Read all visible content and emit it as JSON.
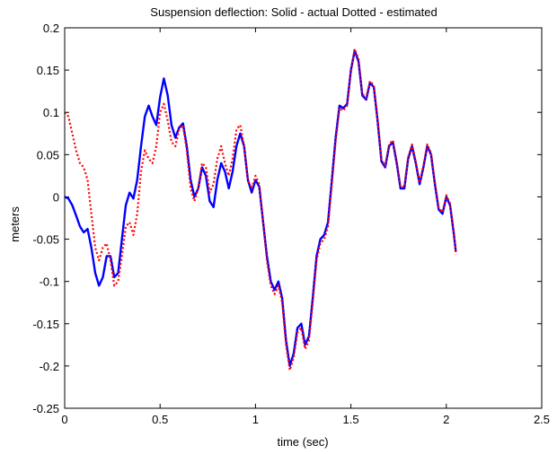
{
  "chart_data": {
    "type": "line",
    "title": "Suspension deflection: Solid - actual  Dotted - estimated",
    "xlabel": "time (sec)",
    "ylabel": "meters",
    "xlim": [
      0,
      2.5
    ],
    "ylim": [
      -0.25,
      0.2
    ],
    "xticks": [
      0,
      0.5,
      1,
      1.5,
      2,
      2.5
    ],
    "xtick_labels": [
      "0",
      "0.5",
      "1",
      "1.5",
      "2",
      "2.5"
    ],
    "yticks": [
      0.2,
      0.15,
      0.1,
      0.05,
      0,
      -0.05,
      -0.1,
      -0.15,
      -0.2,
      -0.25
    ],
    "ytick_labels": [
      "0.2",
      "0.15",
      "0.1",
      "0.05",
      "0",
      "-0.05",
      "-0.1",
      "-0.15",
      "-0.2",
      "-0.25"
    ],
    "grid": false,
    "series": [
      {
        "style": "solid",
        "color": "#0000ff",
        "points": [
          [
            0.0,
            0.0
          ],
          [
            0.02,
            -0.002
          ],
          [
            0.04,
            -0.01
          ],
          [
            0.06,
            -0.022
          ],
          [
            0.08,
            -0.035
          ],
          [
            0.1,
            -0.042
          ],
          [
            0.12,
            -0.038
          ],
          [
            0.14,
            -0.06
          ],
          [
            0.16,
            -0.09
          ],
          [
            0.18,
            -0.105
          ],
          [
            0.2,
            -0.095
          ],
          [
            0.22,
            -0.07
          ],
          [
            0.24,
            -0.07
          ],
          [
            0.26,
            -0.095
          ],
          [
            0.28,
            -0.09
          ],
          [
            0.3,
            -0.05
          ],
          [
            0.32,
            -0.01
          ],
          [
            0.34,
            0.005
          ],
          [
            0.36,
            -0.002
          ],
          [
            0.38,
            0.02
          ],
          [
            0.4,
            0.06
          ],
          [
            0.42,
            0.095
          ],
          [
            0.44,
            0.108
          ],
          [
            0.46,
            0.095
          ],
          [
            0.48,
            0.085
          ],
          [
            0.5,
            0.118
          ],
          [
            0.52,
            0.14
          ],
          [
            0.54,
            0.12
          ],
          [
            0.56,
            0.085
          ],
          [
            0.58,
            0.07
          ],
          [
            0.6,
            0.082
          ],
          [
            0.62,
            0.087
          ],
          [
            0.64,
            0.06
          ],
          [
            0.66,
            0.02
          ],
          [
            0.68,
            0.0
          ],
          [
            0.7,
            0.01
          ],
          [
            0.72,
            0.035
          ],
          [
            0.74,
            0.025
          ],
          [
            0.76,
            -0.005
          ],
          [
            0.78,
            -0.012
          ],
          [
            0.8,
            0.02
          ],
          [
            0.82,
            0.04
          ],
          [
            0.84,
            0.03
          ],
          [
            0.86,
            0.01
          ],
          [
            0.88,
            0.03
          ],
          [
            0.9,
            0.06
          ],
          [
            0.92,
            0.075
          ],
          [
            0.94,
            0.06
          ],
          [
            0.96,
            0.02
          ],
          [
            0.98,
            0.005
          ],
          [
            1.0,
            0.02
          ],
          [
            1.02,
            0.012
          ],
          [
            1.04,
            -0.03
          ],
          [
            1.06,
            -0.07
          ],
          [
            1.08,
            -0.1
          ],
          [
            1.1,
            -0.11
          ],
          [
            1.12,
            -0.1
          ],
          [
            1.14,
            -0.12
          ],
          [
            1.16,
            -0.17
          ],
          [
            1.18,
            -0.2
          ],
          [
            1.2,
            -0.185
          ],
          [
            1.22,
            -0.155
          ],
          [
            1.24,
            -0.15
          ],
          [
            1.26,
            -0.175
          ],
          [
            1.28,
            -0.165
          ],
          [
            1.3,
            -0.12
          ],
          [
            1.32,
            -0.07
          ],
          [
            1.34,
            -0.05
          ],
          [
            1.36,
            -0.045
          ],
          [
            1.38,
            -0.03
          ],
          [
            1.4,
            0.02
          ],
          [
            1.42,
            0.07
          ],
          [
            1.44,
            0.108
          ],
          [
            1.46,
            0.105
          ],
          [
            1.48,
            0.11
          ],
          [
            1.5,
            0.15
          ],
          [
            1.52,
            0.173
          ],
          [
            1.54,
            0.16
          ],
          [
            1.56,
            0.12
          ],
          [
            1.58,
            0.115
          ],
          [
            1.6,
            0.135
          ],
          [
            1.62,
            0.13
          ],
          [
            1.64,
            0.09
          ],
          [
            1.66,
            0.042
          ],
          [
            1.68,
            0.035
          ],
          [
            1.7,
            0.06
          ],
          [
            1.72,
            0.065
          ],
          [
            1.74,
            0.04
          ],
          [
            1.76,
            0.01
          ],
          [
            1.78,
            0.01
          ],
          [
            1.8,
            0.045
          ],
          [
            1.82,
            0.06
          ],
          [
            1.84,
            0.04
          ],
          [
            1.86,
            0.015
          ],
          [
            1.88,
            0.035
          ],
          [
            1.9,
            0.06
          ],
          [
            1.92,
            0.05
          ],
          [
            1.94,
            0.015
          ],
          [
            1.96,
            -0.015
          ],
          [
            1.98,
            -0.02
          ],
          [
            2.0,
            0.0
          ],
          [
            2.02,
            -0.01
          ],
          [
            2.04,
            -0.045
          ],
          [
            2.05,
            -0.065
          ]
        ]
      },
      {
        "style": "dotted",
        "color": "#ff0000",
        "points": [
          [
            0.0,
            0.1
          ],
          [
            0.02,
            0.095
          ],
          [
            0.04,
            0.075
          ],
          [
            0.06,
            0.055
          ],
          [
            0.08,
            0.04
          ],
          [
            0.1,
            0.035
          ],
          [
            0.12,
            0.02
          ],
          [
            0.14,
            -0.02
          ],
          [
            0.16,
            -0.06
          ],
          [
            0.18,
            -0.075
          ],
          [
            0.2,
            -0.06
          ],
          [
            0.22,
            -0.055
          ],
          [
            0.24,
            -0.075
          ],
          [
            0.26,
            -0.105
          ],
          [
            0.28,
            -0.1
          ],
          [
            0.3,
            -0.07
          ],
          [
            0.32,
            -0.035
          ],
          [
            0.34,
            -0.03
          ],
          [
            0.36,
            -0.045
          ],
          [
            0.38,
            -0.02
          ],
          [
            0.4,
            0.03
          ],
          [
            0.42,
            0.055
          ],
          [
            0.44,
            0.045
          ],
          [
            0.46,
            0.04
          ],
          [
            0.48,
            0.06
          ],
          [
            0.5,
            0.1
          ],
          [
            0.52,
            0.11
          ],
          [
            0.54,
            0.09
          ],
          [
            0.56,
            0.065
          ],
          [
            0.58,
            0.06
          ],
          [
            0.6,
            0.08
          ],
          [
            0.62,
            0.085
          ],
          [
            0.64,
            0.055
          ],
          [
            0.66,
            0.01
          ],
          [
            0.68,
            -0.005
          ],
          [
            0.7,
            0.01
          ],
          [
            0.72,
            0.04
          ],
          [
            0.74,
            0.035
          ],
          [
            0.76,
            0.005
          ],
          [
            0.78,
            0.015
          ],
          [
            0.8,
            0.045
          ],
          [
            0.82,
            0.06
          ],
          [
            0.84,
            0.04
          ],
          [
            0.86,
            0.025
          ],
          [
            0.88,
            0.045
          ],
          [
            0.9,
            0.08
          ],
          [
            0.92,
            0.085
          ],
          [
            0.94,
            0.06
          ],
          [
            0.96,
            0.02
          ],
          [
            0.98,
            0.01
          ],
          [
            1.0,
            0.025
          ],
          [
            1.02,
            0.015
          ],
          [
            1.04,
            -0.03
          ],
          [
            1.06,
            -0.075
          ],
          [
            1.08,
            -0.105
          ],
          [
            1.1,
            -0.115
          ],
          [
            1.12,
            -0.105
          ],
          [
            1.14,
            -0.125
          ],
          [
            1.16,
            -0.175
          ],
          [
            1.18,
            -0.205
          ],
          [
            1.2,
            -0.19
          ],
          [
            1.22,
            -0.16
          ],
          [
            1.24,
            -0.155
          ],
          [
            1.26,
            -0.18
          ],
          [
            1.28,
            -0.17
          ],
          [
            1.3,
            -0.125
          ],
          [
            1.32,
            -0.075
          ],
          [
            1.34,
            -0.055
          ],
          [
            1.36,
            -0.05
          ],
          [
            1.38,
            -0.035
          ],
          [
            1.4,
            0.015
          ],
          [
            1.42,
            0.065
          ],
          [
            1.44,
            0.105
          ],
          [
            1.46,
            0.102
          ],
          [
            1.48,
            0.108
          ],
          [
            1.5,
            0.148
          ],
          [
            1.52,
            0.175
          ],
          [
            1.54,
            0.163
          ],
          [
            1.56,
            0.122
          ],
          [
            1.58,
            0.117
          ],
          [
            1.6,
            0.137
          ],
          [
            1.62,
            0.132
          ],
          [
            1.64,
            0.092
          ],
          [
            1.66,
            0.044
          ],
          [
            1.68,
            0.037
          ],
          [
            1.7,
            0.062
          ],
          [
            1.72,
            0.067
          ],
          [
            1.74,
            0.042
          ],
          [
            1.76,
            0.012
          ],
          [
            1.78,
            0.012
          ],
          [
            1.8,
            0.047
          ],
          [
            1.82,
            0.062
          ],
          [
            1.84,
            0.042
          ],
          [
            1.86,
            0.017
          ],
          [
            1.88,
            0.037
          ],
          [
            1.9,
            0.062
          ],
          [
            1.92,
            0.052
          ],
          [
            1.94,
            0.017
          ],
          [
            1.96,
            -0.013
          ],
          [
            1.98,
            -0.018
          ],
          [
            2.0,
            0.002
          ],
          [
            2.02,
            -0.008
          ],
          [
            2.04,
            -0.043
          ],
          [
            2.05,
            -0.068
          ]
        ]
      }
    ]
  }
}
